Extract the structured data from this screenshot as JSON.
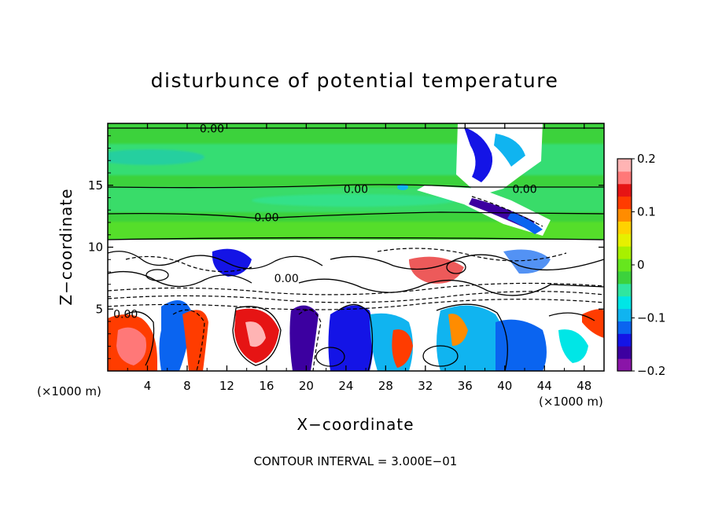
{
  "chart_data": {
    "type": "heatmap",
    "title": "disturbunce of potential temperature",
    "xlabel": "X−coordinate",
    "ylabel": "Z−coordinate",
    "x_unit": "(×1000 m)",
    "z_unit": "(×1000 m)",
    "xlim": [
      0,
      50
    ],
    "ylim": [
      0,
      20
    ],
    "x_ticks": [
      4,
      8,
      12,
      16,
      20,
      24,
      28,
      32,
      36,
      40,
      44,
      48
    ],
    "x_tick_labels": [
      "4",
      "8",
      "12",
      "16",
      "20",
      "24",
      "28",
      "32",
      "36",
      "40",
      "44",
      "48"
    ],
    "y_ticks": [
      5,
      10,
      15
    ],
    "y_tick_labels": [
      "5",
      "10",
      "15"
    ],
    "colorbar": {
      "range": [
        -0.2,
        0.2
      ],
      "ticks": [
        0.2,
        0.1,
        0,
        -0.1,
        -0.2
      ],
      "tick_labels": [
        "0.2",
        "0.1",
        "0",
        "−0.1",
        "−0.2"
      ],
      "colors": [
        "#8a14a8",
        "#3c00a0",
        "#1414e6",
        "#0a64f0",
        "#10b4f0",
        "#00e6e6",
        "#30e6a0",
        "#3cd23c",
        "#66e61e",
        "#a8f000",
        "#e6f000",
        "#ffd200",
        "#ff8c00",
        "#ff3c00",
        "#e61414",
        "#ff7878",
        "#ffb4b4"
      ]
    },
    "contour_labels": [
      {
        "text": "0.00",
        "x": 10.5,
        "z": 19.6
      },
      {
        "text": "0.00",
        "x": 25.0,
        "z": 14.7
      },
      {
        "text": "0.00",
        "x": 42.0,
        "z": 14.7
      },
      {
        "text": "0.00",
        "x": 16.0,
        "z": 12.4
      },
      {
        "text": "0.00",
        "x": 1.8,
        "z": 4.6
      },
      {
        "text": "0.00",
        "x": 18.0,
        "z": 7.5
      }
    ],
    "contour_interval_text": "CONTOUR INTERVAL = 3.000E−01"
  }
}
